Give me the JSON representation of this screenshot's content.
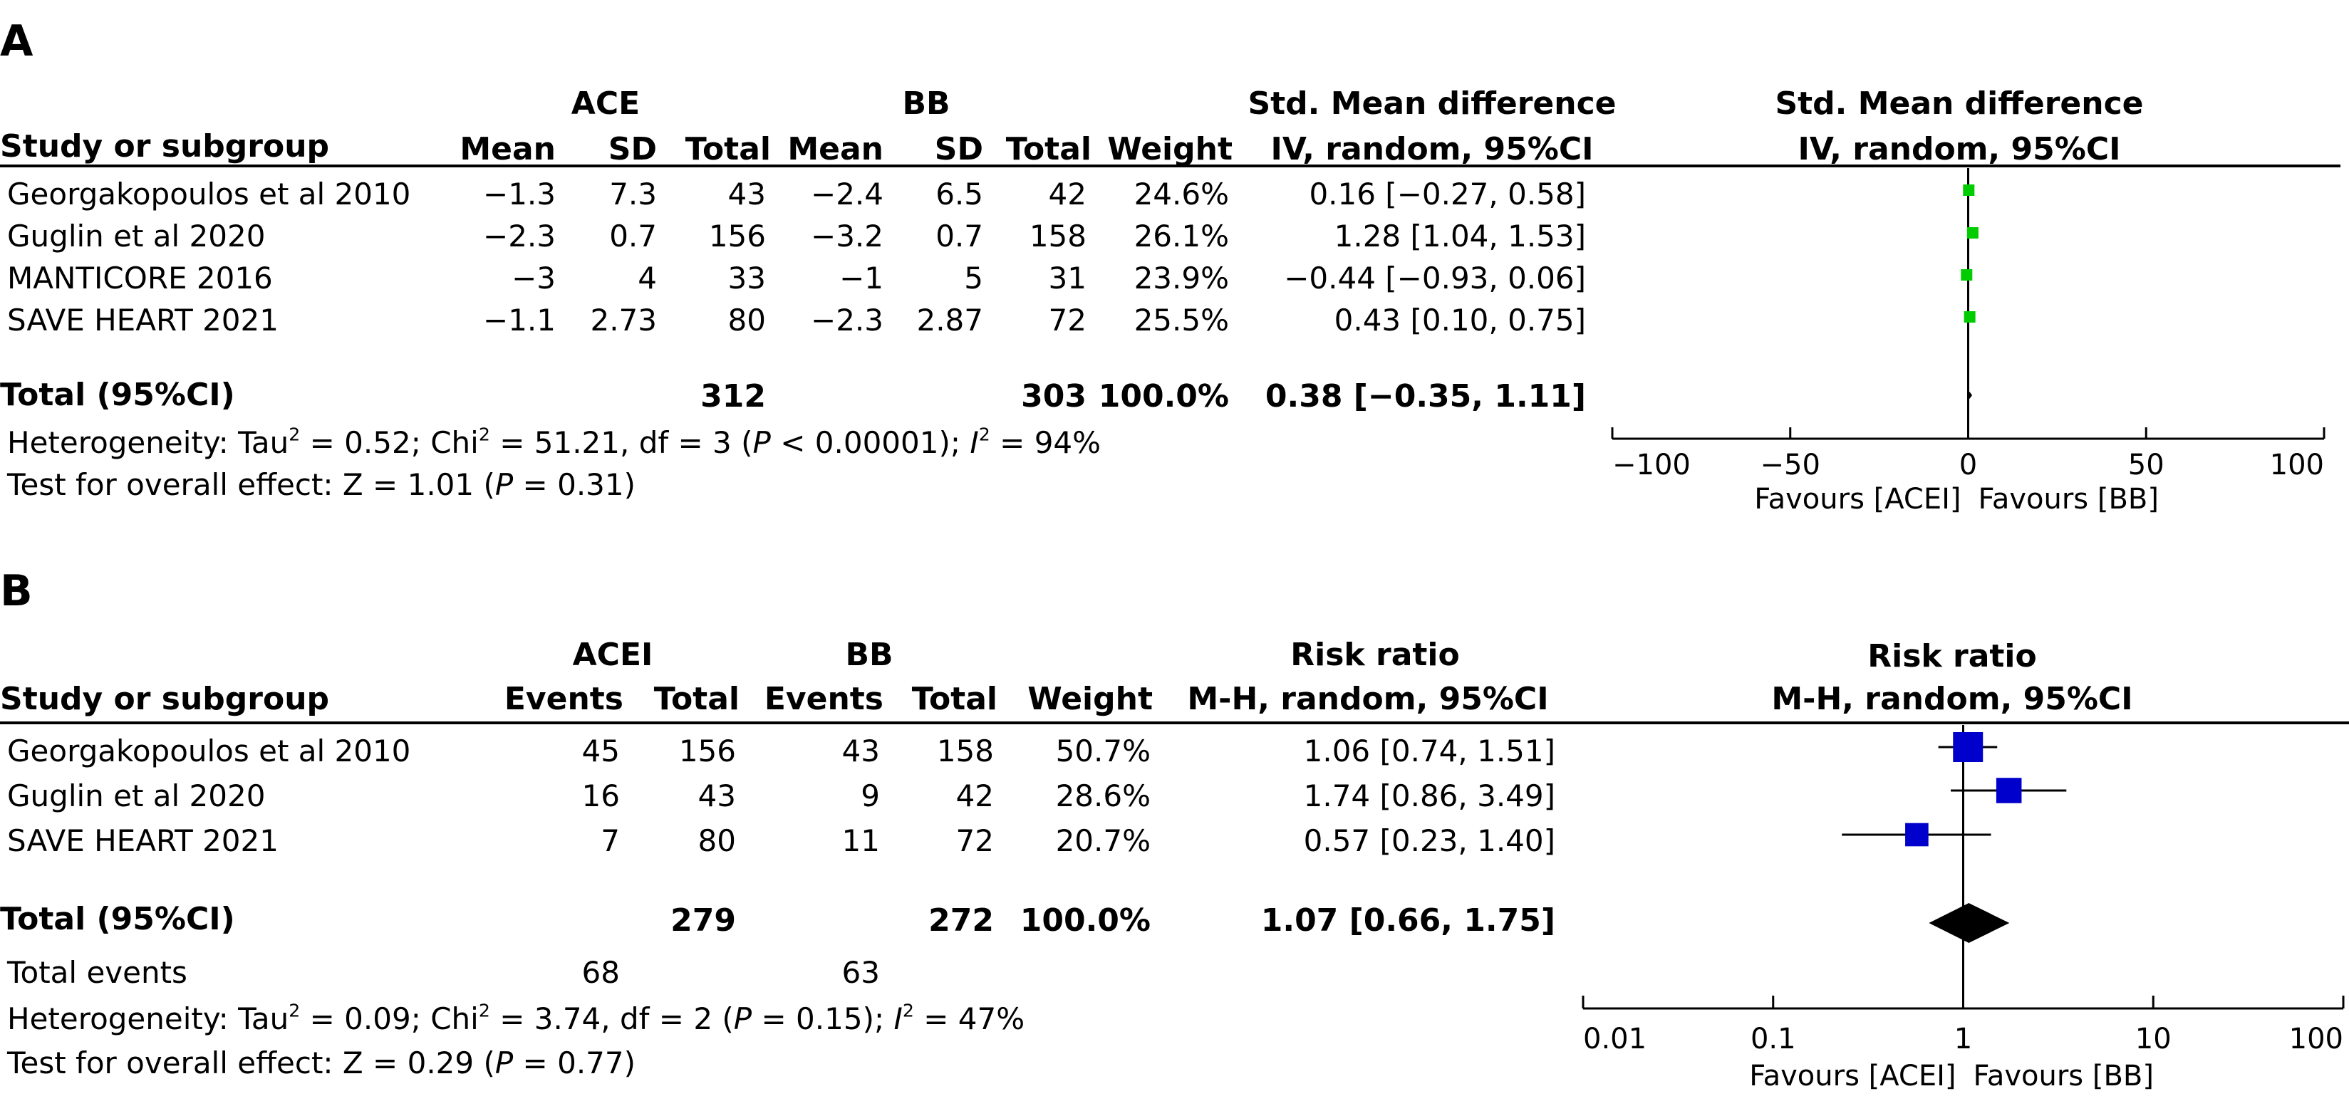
{
  "chart_data": [
    {
      "type": "forest",
      "panel_label": "A",
      "x_scale": "linear",
      "xlim": [
        -100,
        100
      ],
      "x_ticks": [
        "-100",
        "-50",
        "0",
        "50",
        "100"
      ],
      "marker_color": "#00cc00",
      "favours_left": "Favours [ACEI]",
      "favours_right": "Favours [BB]",
      "header": {
        "study": "Study or subgroup",
        "group1": "ACE",
        "group2": "BB",
        "mean1": "Mean",
        "sd1": "SD",
        "total1": "Total",
        "mean2": "Mean",
        "sd2": "SD",
        "total2": "Total",
        "weight": "Weight",
        "effect_line1": "Std. Mean difference",
        "effect_line2": "IV, random, 95%CI",
        "plot_line1": "Std. Mean difference",
        "plot_line2": "IV, random, 95%CI"
      },
      "rows": [
        {
          "study": "Georgakopoulos et al 2010",
          "mean1": "−1.3",
          "sd1": "7.3",
          "total1": "43",
          "mean2": "−2.4",
          "sd2": "6.5",
          "total2": "42",
          "weight": "24.6%",
          "ci_text": "0.16 [−0.27, 0.58]",
          "est": 0.16,
          "lo": -0.27,
          "hi": 0.58
        },
        {
          "study": "Guglin et al 2020",
          "mean1": "−2.3",
          "sd1": "0.7",
          "total1": "156",
          "mean2": "−3.2",
          "sd2": "0.7",
          "total2": "158",
          "weight": "26.1%",
          "ci_text": "1.28 [1.04, 1.53]",
          "est": 1.28,
          "lo": 1.04,
          "hi": 1.53
        },
        {
          "study": "MANTICORE 2016",
          "mean1": "−3",
          "sd1": "4",
          "total1": "33",
          "mean2": "−1",
          "sd2": "5",
          "total2": "31",
          "weight": "23.9%",
          "ci_text": "−0.44 [−0.93, 0.06]",
          "est": -0.44,
          "lo": -0.93,
          "hi": 0.06
        },
        {
          "study": "SAVE HEART 2021",
          "mean1": "−1.1",
          "sd1": "2.73",
          "total1": "80",
          "mean2": "−2.3",
          "sd2": "2.87",
          "total2": "72",
          "weight": "25.5%",
          "ci_text": "0.43 [0.10, 0.75]",
          "est": 0.43,
          "lo": 0.1,
          "hi": 0.75
        }
      ],
      "total": {
        "label": "Total (95%CI)",
        "total1": "312",
        "total2": "303",
        "weight": "100.0%",
        "ci_text": "0.38 [−0.35, 1.11]",
        "est": 0.38,
        "lo": -0.35,
        "hi": 1.11
      },
      "heterogeneity": {
        "prefix": "Heterogeneity: Tau",
        "tau2": "0.52",
        "chi2": "51.21",
        "df": "3",
        "p": "0.00001",
        "p_op": "<",
        "i2": "94%"
      },
      "overall_effect": {
        "prefix": "Test for overall effect: Z = ",
        "z": "1.01",
        "p": "0.31"
      }
    },
    {
      "type": "forest",
      "panel_label": "B",
      "x_scale": "log",
      "xlim": [
        0.01,
        100
      ],
      "x_ticks": [
        "0.01",
        "0.1",
        "1",
        "10",
        "100"
      ],
      "marker_color": "#0000cc",
      "favours_left": "Favours [ACEI]",
      "favours_right": "Favours [BB]",
      "header": {
        "study": "Study or subgroup",
        "group1": "ACEI",
        "group2": "BB",
        "events1": "Events",
        "total1": "Total",
        "events2": "Events",
        "total2": "Total",
        "weight": "Weight",
        "effect_line1": "Risk ratio",
        "effect_line2": "M-H, random, 95%CI",
        "plot_line1": "Risk ratio",
        "plot_line2": "M-H, random, 95%CI"
      },
      "rows": [
        {
          "study": "Georgakopoulos et al 2010",
          "events1": "45",
          "total1": "156",
          "events2": "43",
          "total2": "158",
          "weight": "50.7%",
          "ci_text": "1.06 [0.74, 1.51]",
          "est": 1.06,
          "lo": 0.74,
          "hi": 1.51,
          "w": 50.7
        },
        {
          "study": "Guglin et al 2020",
          "events1": "16",
          "total1": "43",
          "events2": "9",
          "total2": "42",
          "weight": "28.6%",
          "ci_text": "1.74 [0.86, 3.49]",
          "est": 1.74,
          "lo": 0.86,
          "hi": 3.49,
          "w": 28.6
        },
        {
          "study": "SAVE HEART 2021",
          "events1": "7",
          "total1": "80",
          "events2": "11",
          "total2": "72",
          "weight": "20.7%",
          "ci_text": "0.57 [0.23, 1.40]",
          "est": 0.57,
          "lo": 0.23,
          "hi": 1.4,
          "w": 20.7
        }
      ],
      "total": {
        "label": "Total (95%CI)",
        "total1": "279",
        "total2": "272",
        "weight": "100.0%",
        "ci_text": "1.07 [0.66, 1.75]",
        "est": 1.07,
        "lo": 0.66,
        "hi": 1.75
      },
      "total_events": {
        "label": "Total events",
        "events1": "68",
        "events2": "63"
      },
      "heterogeneity": {
        "prefix": "Heterogeneity: Tau",
        "tau2": "0.09",
        "chi2": "3.74",
        "df": "2",
        "p": "0.15",
        "p_op": "=",
        "i2": "47%"
      },
      "overall_effect": {
        "prefix": "Test for overall effect: Z = ",
        "z": "0.29",
        "p": "0.77"
      }
    }
  ]
}
